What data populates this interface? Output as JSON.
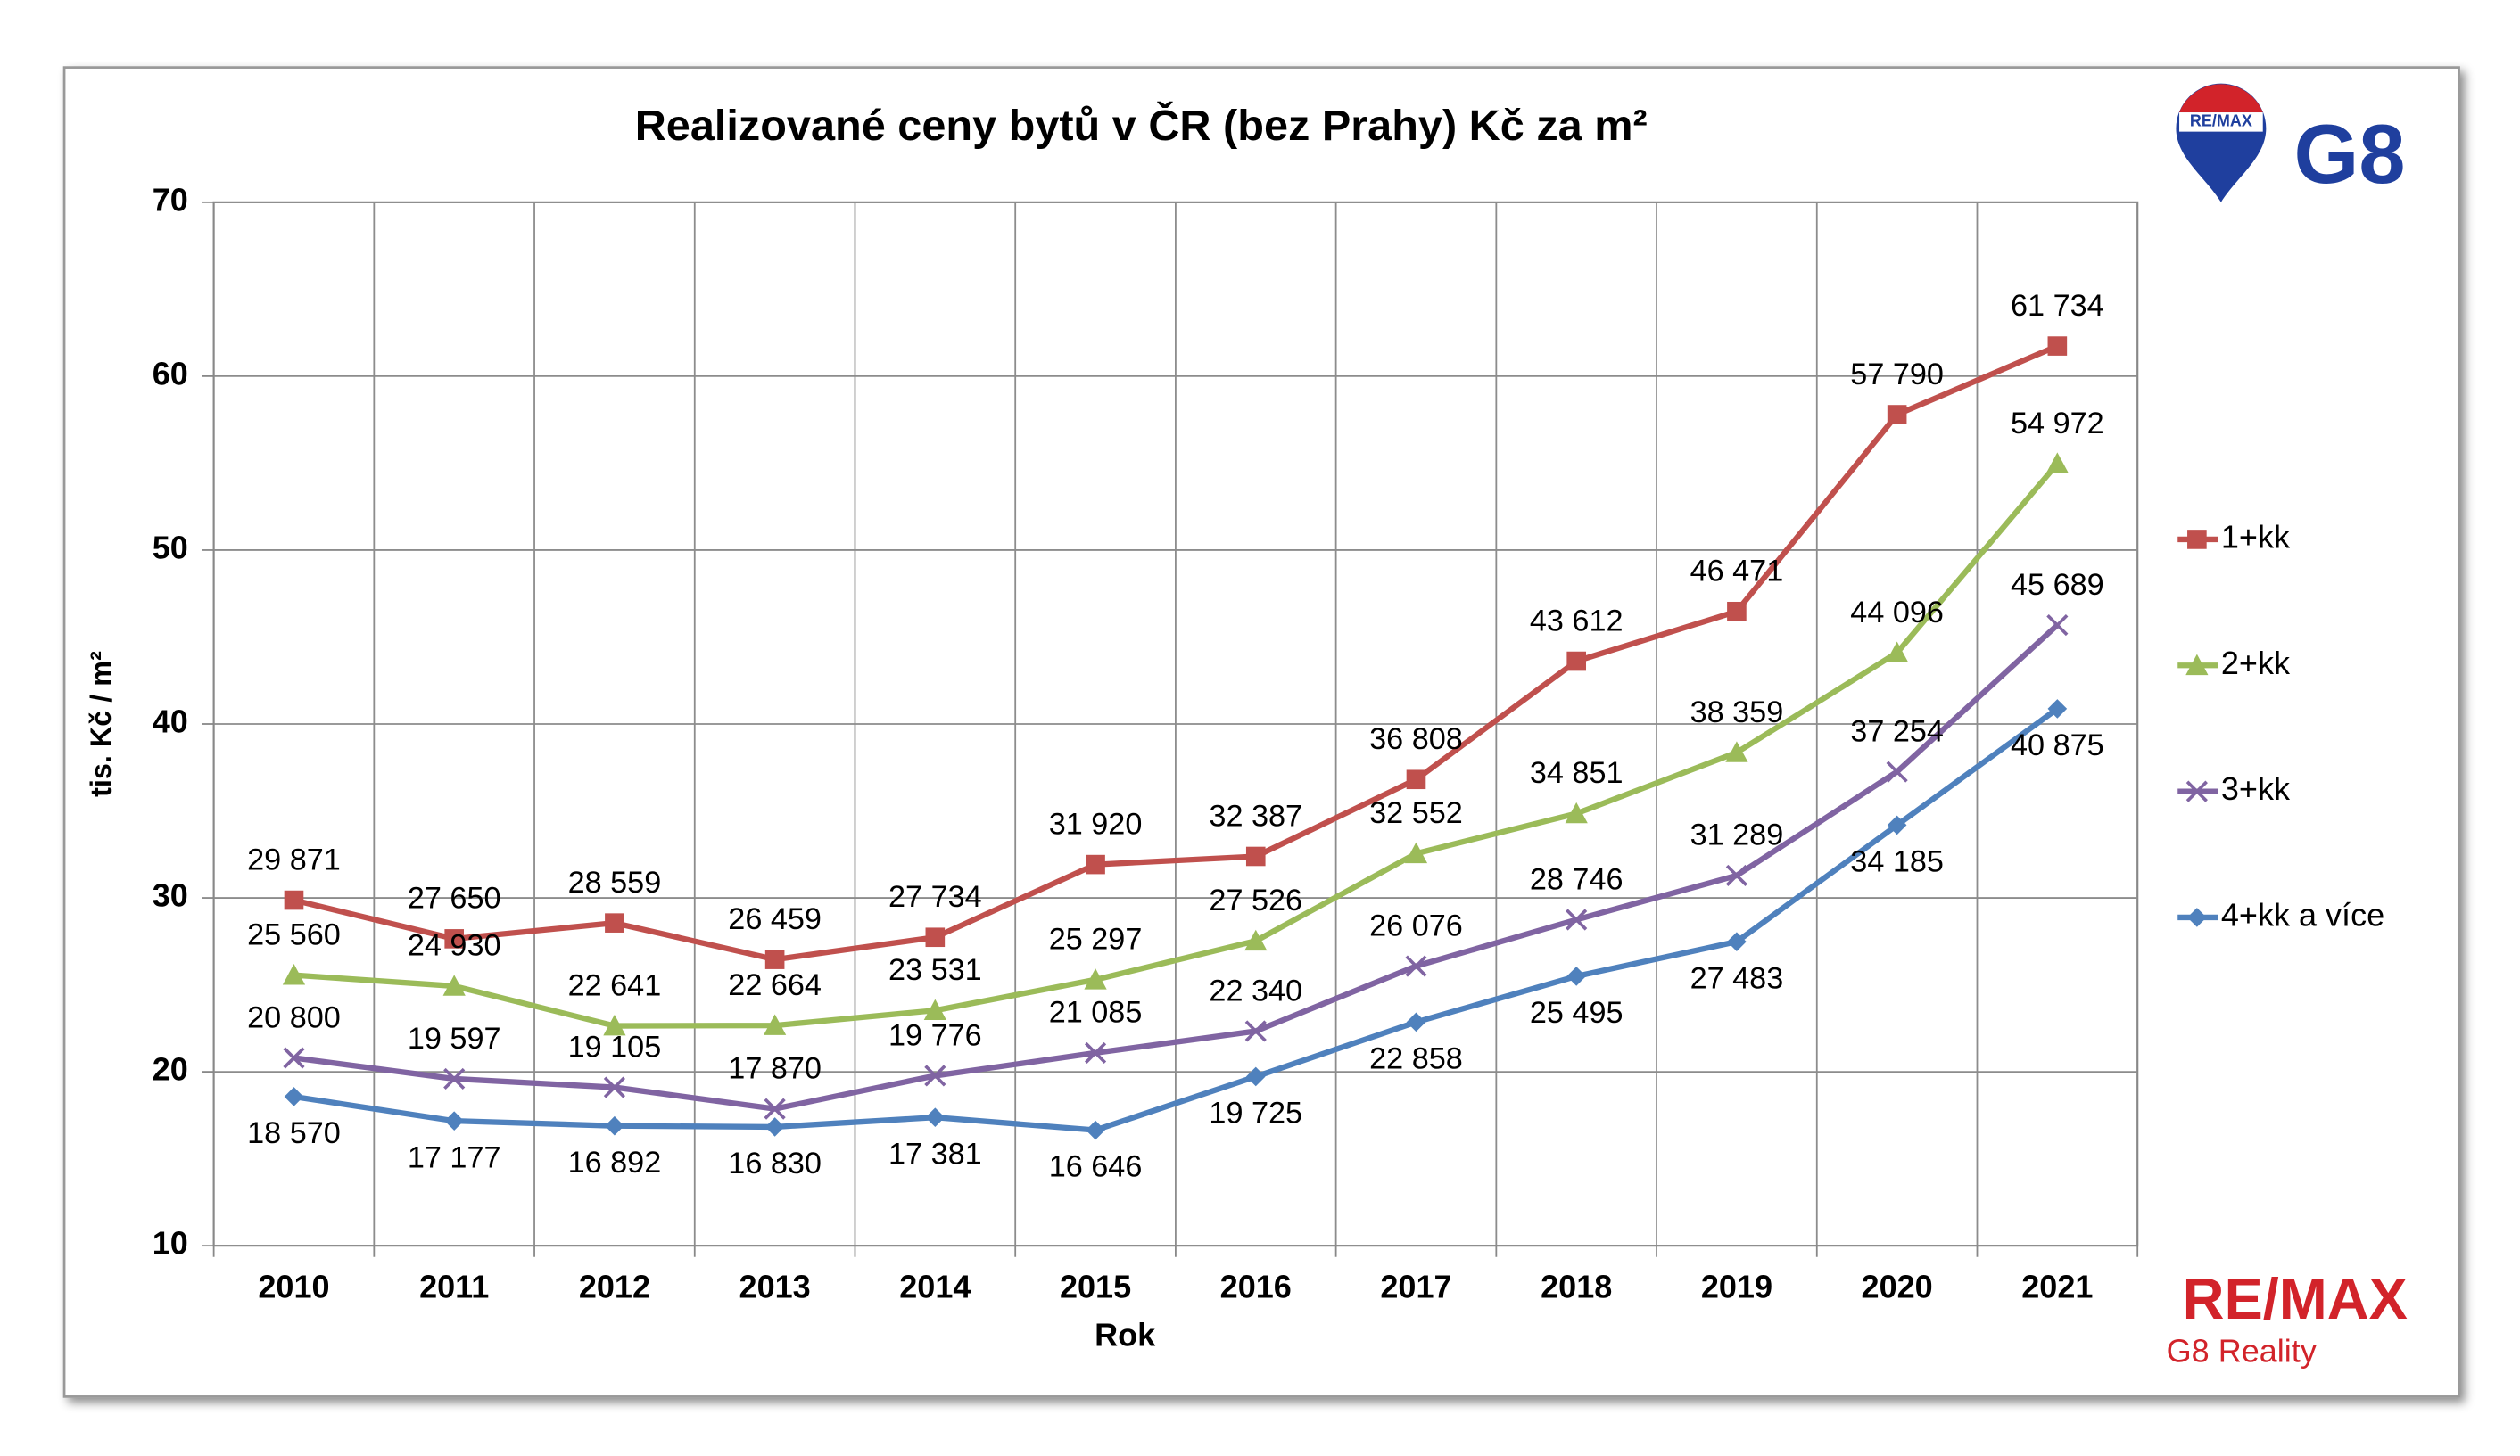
{
  "chart_data": {
    "type": "line",
    "title": "Realizované ceny bytů v ČR (bez Prahy) Kč za m²",
    "x_label": "Rok",
    "y_label": "tis. Kč / m²",
    "categories": [
      "2010",
      "2011",
      "2012",
      "2013",
      "2014",
      "2015",
      "2016",
      "2017",
      "2018",
      "2019",
      "2020",
      "2021"
    ],
    "ylim": [
      10,
      70
    ],
    "yticks": [
      10,
      20,
      30,
      40,
      50,
      60,
      70
    ],
    "grid": true,
    "legend": "right",
    "series": [
      {
        "name": "1+kk",
        "color": "#c0504d",
        "marker": "square",
        "values": [
          29.871,
          27.65,
          28.559,
          26.459,
          27.734,
          31.92,
          32.387,
          36.808,
          43.612,
          46.471,
          57.79,
          61.734
        ],
        "value_labels": [
          "29 871",
          "27 650",
          "28 559",
          "26 459",
          "27 734",
          "31 920",
          "32 387",
          "36 808",
          "43 612",
          "46 471",
          "57 790",
          "61 734"
        ]
      },
      {
        "name": "2+kk",
        "color": "#9bbb59",
        "marker": "triangle",
        "values": [
          25.56,
          24.93,
          22.641,
          22.664,
          23.531,
          25.297,
          27.526,
          32.552,
          34.851,
          38.359,
          44.096,
          54.972
        ],
        "value_labels": [
          "25 560",
          "24 930",
          "22 641",
          "22 664",
          "23 531",
          "25 297",
          "27 526",
          "32 552",
          "34 851",
          "38 359",
          "44 096",
          "54 972"
        ]
      },
      {
        "name": "3+kk",
        "color": "#8064a2",
        "marker": "cross",
        "values": [
          20.8,
          19.597,
          19.105,
          17.87,
          19.776,
          21.085,
          22.34,
          26.076,
          28.746,
          31.289,
          37.254,
          45.689
        ],
        "value_labels": [
          "20 800",
          "19 597",
          "19 105",
          "17 870",
          "19 776",
          "21 085",
          "22 340",
          "26 076",
          "28 746",
          "31 289",
          "37 254",
          "45 689"
        ]
      },
      {
        "name": "4+kk a více",
        "color": "#4f81bd",
        "marker": "diamond",
        "values": [
          18.57,
          17.177,
          16.892,
          16.83,
          17.381,
          16.646,
          19.725,
          22.858,
          25.495,
          27.483,
          34.185,
          40.875
        ],
        "value_labels": [
          "18 570",
          "17 177",
          "16 892",
          "16 830",
          "17 381",
          "16 646",
          "19 725",
          "22 858",
          "25 495",
          "27 483",
          "34 185",
          "40 875"
        ]
      }
    ]
  },
  "branding": {
    "top_logo": {
      "badge": "RE/MAX",
      "text": "G8"
    },
    "bottom_logo": {
      "brand": "RE/MAX",
      "office": "G8 Reality"
    }
  }
}
